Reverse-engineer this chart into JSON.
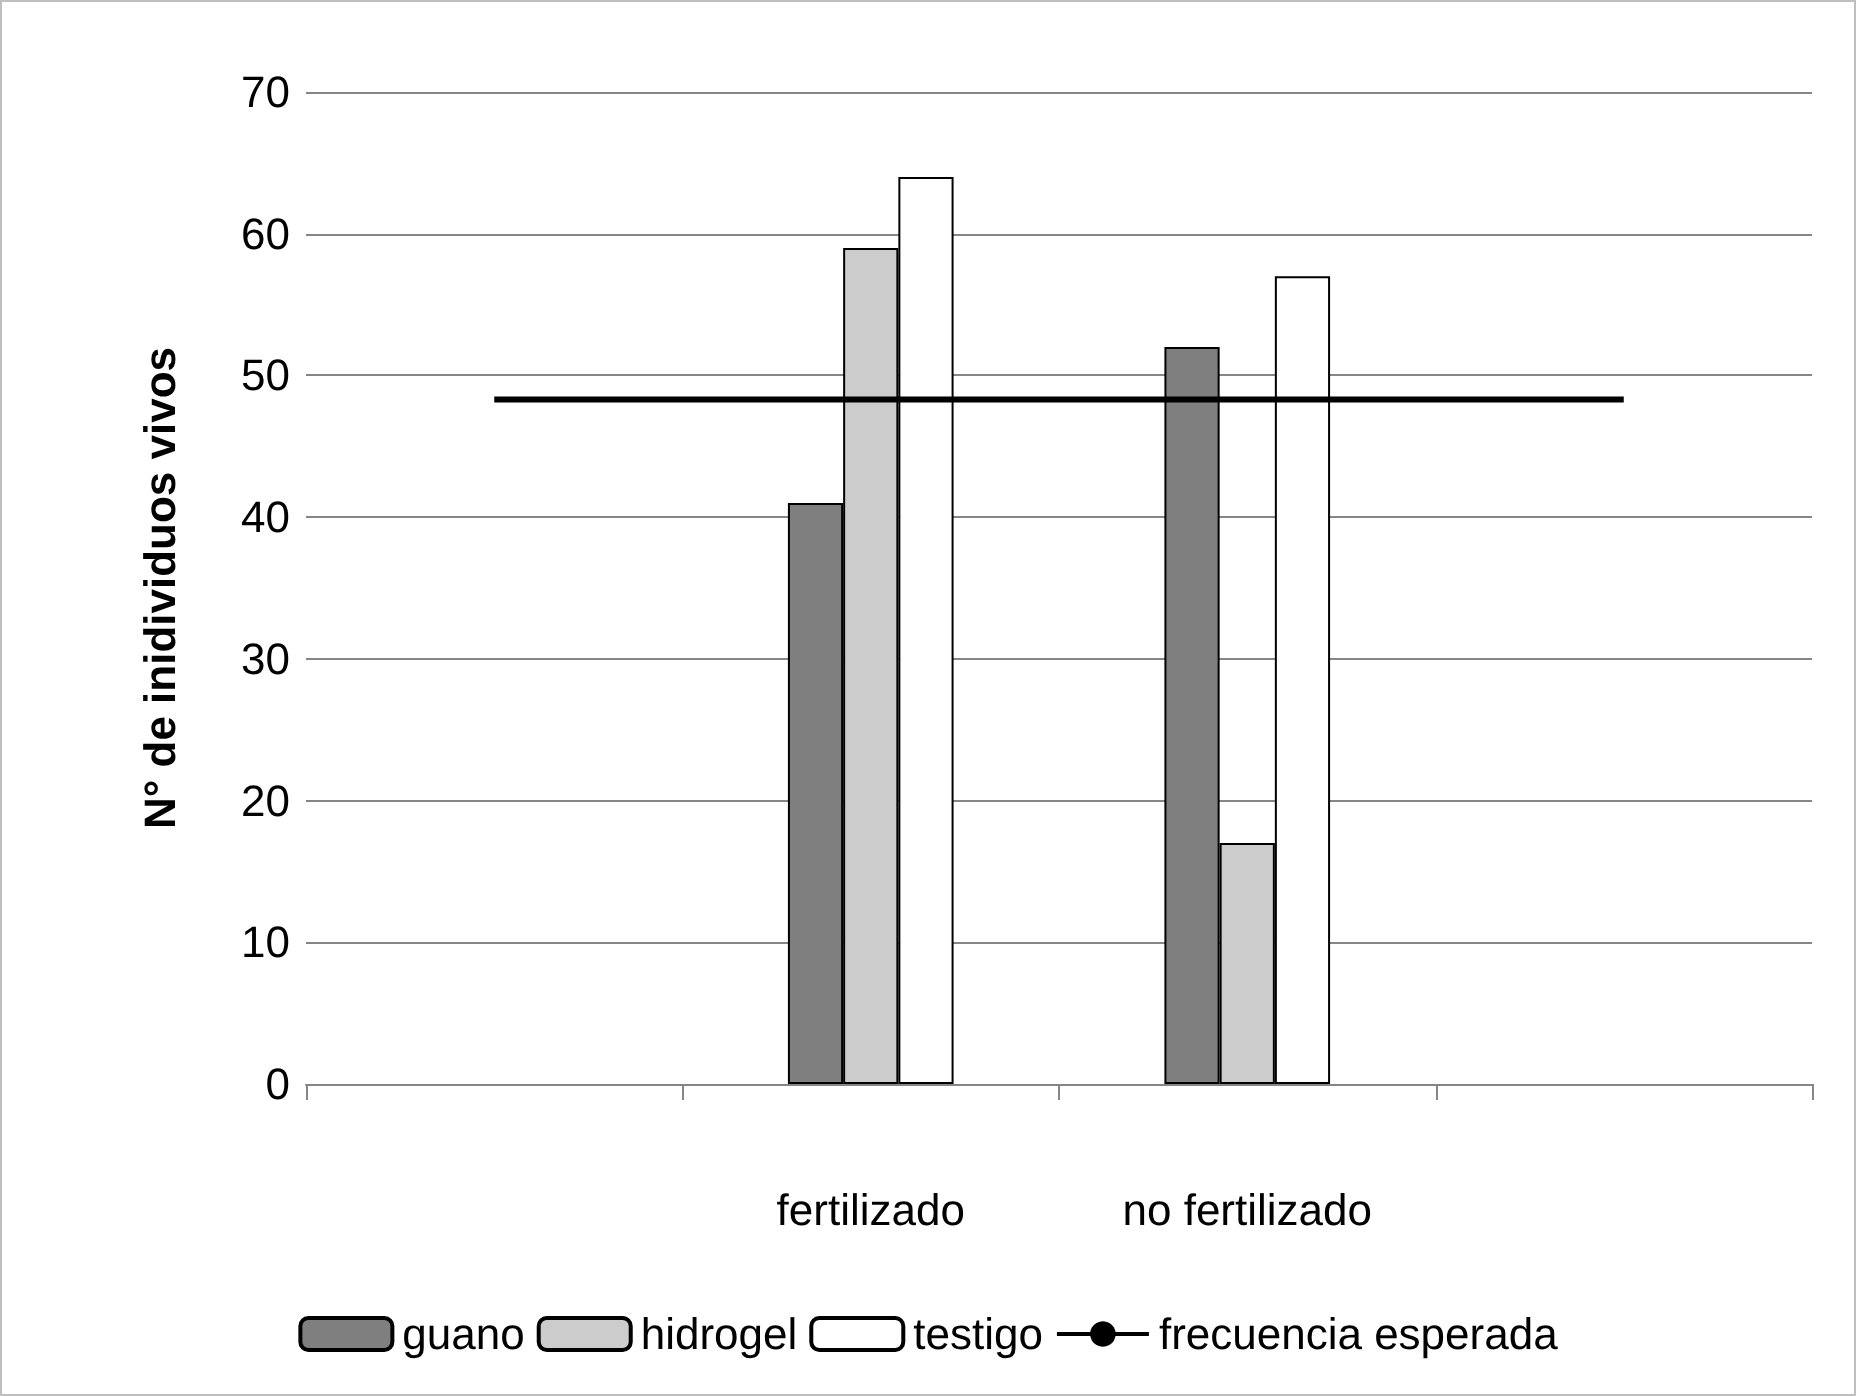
{
  "chart_data": {
    "type": "bar",
    "ylabel": "N° de inidividuos vivos",
    "categories": [
      null,
      "fertilizado",
      "no fertilizado",
      null
    ],
    "series": [
      {
        "name": "guano",
        "color": "#7f7f7f",
        "values": [
          null,
          41,
          52,
          null
        ]
      },
      {
        "name": "hidrogel",
        "color": "#cccccc",
        "values": [
          null,
          59,
          17,
          null
        ]
      },
      {
        "name": "testigo",
        "color": "#ffffff",
        "values": [
          null,
          64,
          57,
          null
        ]
      },
      {
        "name": "frecuencia esperada",
        "type": "line",
        "color": "#000000",
        "values": [
          48.3,
          48.3,
          48.3,
          48.3
        ]
      }
    ],
    "ylim": [
      0,
      70
    ],
    "yticks": [
      0,
      10,
      20,
      30,
      40,
      50,
      60,
      70
    ],
    "grid": "y",
    "legend": "bottom",
    "marker": "none",
    "line_style": "solid"
  }
}
